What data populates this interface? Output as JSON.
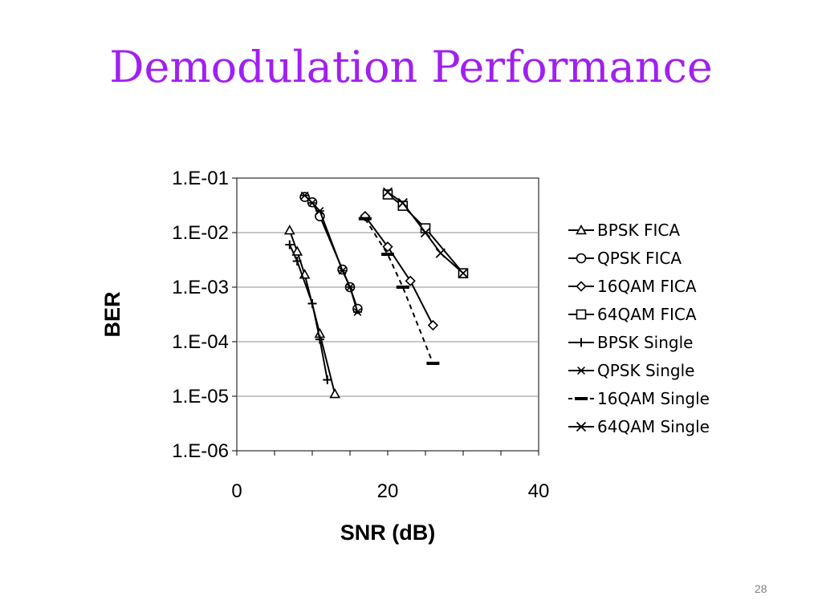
{
  "slide": {
    "title": "Demodulation Performance",
    "page_number": "28"
  },
  "chart_data": {
    "type": "line",
    "title": "",
    "xlabel": "SNR (dB)",
    "ylabel": "BER",
    "xlim": [
      0,
      40
    ],
    "ylim": [
      1e-06,
      0.1
    ],
    "y_scale": "log",
    "grid": "horizontal",
    "legend_position": "right",
    "x_ticks": [
      0,
      20,
      40
    ],
    "x_tick_labels": [
      "0",
      "20",
      "40"
    ],
    "y_ticks": [
      0.1,
      0.01,
      0.001,
      0.0001,
      1e-05,
      1e-06
    ],
    "y_tick_labels": [
      "1.E-01",
      "1.E-02",
      "1.E-03",
      "1.E-04",
      "1.E-05",
      "1.E-06"
    ],
    "series": [
      {
        "name": "BPSK FICA",
        "marker": "triangle",
        "dashed": false,
        "x": [
          7,
          8,
          9,
          11,
          13
        ],
        "y": [
          0.011,
          0.0045,
          0.0017,
          0.00014,
          1.1e-05
        ]
      },
      {
        "name": "QPSK FICA",
        "marker": "circle",
        "dashed": false,
        "x": [
          9,
          10,
          11,
          14,
          15,
          16
        ],
        "y": [
          0.045,
          0.036,
          0.02,
          0.0021,
          0.001,
          0.0004
        ]
      },
      {
        "name": "16QAM FICA",
        "marker": "diamond",
        "dashed": false,
        "x": [
          17,
          20,
          23,
          26
        ],
        "y": [
          0.02,
          0.0055,
          0.0013,
          0.0002
        ]
      },
      {
        "name": "64QAM FICA",
        "marker": "square",
        "dashed": false,
        "x": [
          20,
          22,
          25,
          30
        ],
        "y": [
          0.05,
          0.031,
          0.012,
          0.0018
        ]
      },
      {
        "name": "BPSK Single",
        "marker": "plus",
        "dashed": false,
        "x": [
          7,
          8,
          10,
          11,
          12
        ],
        "y": [
          0.006,
          0.003,
          0.0005,
          0.00011,
          2e-05
        ]
      },
      {
        "name": "QPSK Single",
        "marker": "asterisk",
        "dashed": false,
        "x": [
          9,
          10,
          11,
          14,
          15,
          16
        ],
        "y": [
          0.048,
          0.035,
          0.025,
          0.002,
          0.001,
          0.00035
        ]
      },
      {
        "name": "16QAM Single",
        "marker": "dash",
        "dashed": true,
        "x": [
          17,
          20,
          22,
          26
        ],
        "y": [
          0.018,
          0.004,
          0.001,
          4e-05
        ]
      },
      {
        "name": "64QAM Single",
        "marker": "x",
        "dashed": false,
        "x": [
          20,
          22,
          25,
          27,
          30
        ],
        "y": [
          0.055,
          0.035,
          0.01,
          0.0042,
          0.0018
        ]
      }
    ]
  },
  "colors": {
    "title": "#a020f0",
    "series_line": "#000000",
    "grid": "#8c8c8c",
    "page_number": "#808080"
  }
}
